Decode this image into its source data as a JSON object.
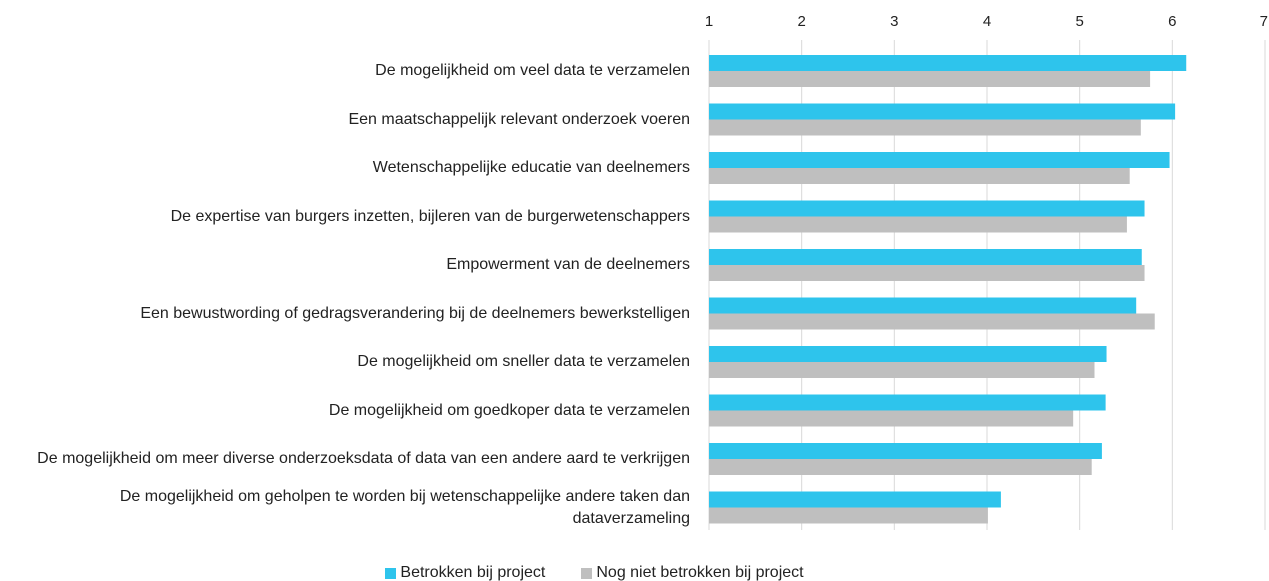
{
  "chart_data": {
    "type": "bar",
    "orientation": "horizontal",
    "categories": [
      "De mogelijkheid om veel data te verzamelen",
      "Een maatschappelijk relevant onderzoek voeren",
      "Wetenschappelijke educatie van deelnemers",
      "De expertise van burgers inzetten, bijleren van de burgerwetenschappers",
      "Empowerment van de deelnemers",
      "Een bewustwording of gedragsverandering bij de deelnemers bewerkstelligen",
      "De mogelijkheid om sneller data te verzamelen",
      "De mogelijkheid om goedkoper data te verzamelen",
      "De mogelijkheid om meer diverse onderzoeksdata of data van een andere aard te verkrijgen",
      "De mogelijkheid om geholpen te worden bij wetenschappelijke andere taken dan dataverzameling"
    ],
    "series": [
      {
        "name": "Betrokken bij project",
        "color": "#2ec4ec",
        "values": [
          6.15,
          6.03,
          5.97,
          5.7,
          5.67,
          5.61,
          5.29,
          5.28,
          5.24,
          4.15
        ]
      },
      {
        "name": "Nog niet betrokken bij project",
        "color": "#bfbfbf",
        "values": [
          5.76,
          5.66,
          5.54,
          5.51,
          5.7,
          5.81,
          5.16,
          4.93,
          5.13,
          4.01
        ]
      }
    ],
    "xlim": [
      1,
      7
    ],
    "xticks": [
      1,
      2,
      3,
      4,
      5,
      6,
      7
    ],
    "grid": true,
    "legend": "bottom"
  }
}
